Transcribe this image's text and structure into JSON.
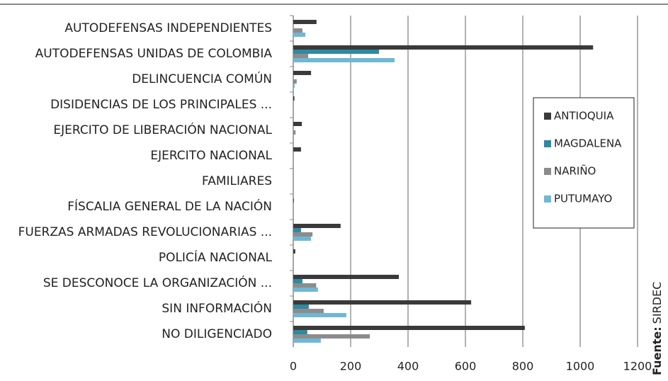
{
  "chart_data": {
    "type": "barh",
    "categories": [
      "AUTODEFENSAS INDEPENDIENTES",
      "AUTODEFENSAS UNIDAS DE COLOMBIA",
      "DELINCUENCIA COMÚN",
      "DISIDENCIAS DE LOS PRINCIPALES ...",
      "EJERCITO DE LIBERACIÓN NACIONAL",
      "EJERCITO NACIONAL",
      "FAMILIARES",
      "FÍSCALIA GENERAL DE LA NACIÓN",
      "FUERZAS ARMADAS REVOLUCIONARIAS ...",
      "POLICÍA NACIONAL",
      "SE DESCONOCE LA ORGANIZACIÓN ...",
      "SIN INFORMACIÓN",
      "NO DILIGENCIADO"
    ],
    "series": [
      {
        "name": "ANTIOQUIA",
        "color": "#3a3a3a",
        "values": [
          81,
          1045,
          62,
          4,
          30,
          27,
          0,
          2,
          165,
          7,
          368,
          620,
          807
        ]
      },
      {
        "name": "MAGDALENA",
        "color": "#2e8aa0",
        "values": [
          0,
          299,
          0,
          0,
          0,
          0,
          0,
          0,
          27,
          0,
          32,
          54,
          49
        ]
      },
      {
        "name": "NARIÑO",
        "color": "#8c8c8c",
        "values": [
          32,
          52,
          12,
          0,
          8,
          0,
          0,
          0,
          67,
          0,
          80,
          106,
          267
        ]
      },
      {
        "name": "PUTUMAYO",
        "color": "#6fb8d4",
        "values": [
          42,
          353,
          5,
          0,
          0,
          0,
          0,
          0,
          62,
          0,
          86,
          185,
          96
        ]
      }
    ],
    "xlim": [
      0,
      1200
    ],
    "xticks": [
      0,
      200,
      400,
      600,
      800,
      1000,
      1200
    ],
    "grid": true,
    "legend": "right",
    "source_label": "Fuente:",
    "source": "SIRDEC"
  }
}
